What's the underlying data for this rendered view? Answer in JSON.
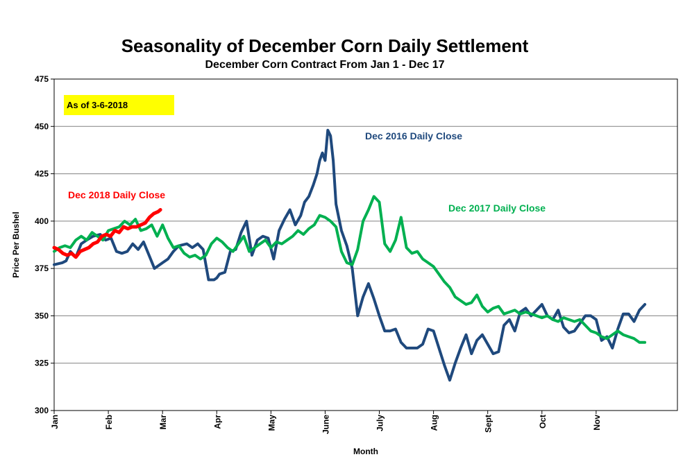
{
  "chart_data": {
    "type": "line",
    "title": "Seasonality of December Corn Daily Settlement",
    "subtitle": "December Corn Contract From Jan 1 - Dec 17",
    "xlabel": "Month",
    "ylabel": "Price Per Bushel",
    "ylim": [
      300,
      475
    ],
    "yticks": [
      300,
      325,
      350,
      375,
      400,
      425,
      450,
      475
    ],
    "xlim": [
      0,
      11.5
    ],
    "months": [
      "Jan",
      "Feb",
      "Mar",
      "Apr",
      "May",
      "June",
      "July",
      "Aug",
      "Sept",
      "Oct",
      "Nov"
    ],
    "grid": true,
    "note": "As of 3-6-2018",
    "colors": {
      "dec2016": "#1F497D",
      "dec2017": "#00B050",
      "dec2018": "#FF0000",
      "note_bg": "#FFFF00"
    },
    "series": [
      {
        "key": "dec2016",
        "name": "Dec 2016 Daily Close",
        "x": [
          0,
          0.15,
          0.22,
          0.3,
          0.4,
          0.5,
          0.6,
          0.72,
          0.85,
          0.95,
          1.05,
          1.15,
          1.25,
          1.35,
          1.45,
          1.55,
          1.65,
          1.75,
          1.85,
          2.0,
          2.1,
          2.2,
          2.3,
          2.45,
          2.55,
          2.65,
          2.75,
          2.85,
          2.95,
          3.0,
          3.05,
          3.15,
          3.25,
          3.35,
          3.45,
          3.55,
          3.65,
          3.75,
          3.85,
          3.95,
          4.05,
          4.15,
          4.25,
          4.35,
          4.45,
          4.55,
          4.62,
          4.7,
          4.78,
          4.85,
          4.9,
          4.95,
          5.0,
          5.05,
          5.1,
          5.15,
          5.2,
          5.3,
          5.4,
          5.5,
          5.6,
          5.7,
          5.8,
          5.9,
          6.0,
          6.1,
          6.2,
          6.3,
          6.4,
          6.5,
          6.6,
          6.7,
          6.8,
          6.9,
          7.0,
          7.1,
          7.2,
          7.3,
          7.4,
          7.5,
          7.6,
          7.7,
          7.8,
          7.9,
          8.0,
          8.1,
          8.2,
          8.3,
          8.4,
          8.5,
          8.6,
          8.7,
          8.8,
          8.9,
          9.0,
          9.1,
          9.2,
          9.3,
          9.4,
          9.5,
          9.6,
          9.7,
          9.8,
          9.9,
          10.0,
          10.1,
          10.2,
          10.3,
          10.4,
          10.5,
          10.6,
          10.7,
          10.8,
          10.9
        ],
        "values": [
          377,
          378,
          379,
          384,
          381,
          388,
          390,
          392,
          393,
          390,
          391,
          384,
          383,
          384,
          388,
          385,
          389,
          382,
          375,
          378,
          380,
          384,
          387,
          388,
          386,
          388,
          385,
          369,
          369,
          370,
          372,
          373,
          384,
          385,
          394,
          400,
          382,
          390,
          392,
          391,
          380,
          395,
          401,
          406,
          398,
          403,
          410,
          413,
          419,
          425,
          432,
          436,
          432,
          448,
          445,
          432,
          409,
          395,
          387,
          375,
          350,
          360,
          367,
          359,
          350,
          342,
          342,
          343,
          336,
          333,
          333,
          333,
          335,
          343,
          342,
          333,
          324,
          316,
          325,
          333,
          340,
          330,
          337,
          340,
          335,
          330,
          331,
          345,
          348,
          342,
          352,
          354,
          350,
          353,
          356,
          350,
          348,
          353,
          344,
          341,
          342,
          346,
          350,
          350,
          348,
          337,
          339,
          333,
          343,
          351,
          351,
          347,
          353,
          356
        ]
      },
      {
        "key": "dec2017",
        "name": "Dec 2017 Daily Close",
        "x": [
          0,
          0.1,
          0.2,
          0.3,
          0.4,
          0.5,
          0.6,
          0.7,
          0.8,
          0.9,
          1.0,
          1.1,
          1.2,
          1.3,
          1.4,
          1.5,
          1.6,
          1.7,
          1.8,
          1.9,
          2.0,
          2.1,
          2.2,
          2.3,
          2.4,
          2.5,
          2.6,
          2.7,
          2.8,
          2.9,
          3.0,
          3.1,
          3.2,
          3.3,
          3.4,
          3.5,
          3.6,
          3.7,
          3.8,
          3.9,
          4.0,
          4.1,
          4.2,
          4.3,
          4.4,
          4.5,
          4.6,
          4.7,
          4.8,
          4.9,
          5.0,
          5.1,
          5.2,
          5.3,
          5.4,
          5.5,
          5.6,
          5.7,
          5.8,
          5.9,
          6.0,
          6.1,
          6.2,
          6.3,
          6.4,
          6.5,
          6.6,
          6.7,
          6.8,
          6.9,
          7.0,
          7.1,
          7.2,
          7.3,
          7.4,
          7.5,
          7.6,
          7.7,
          7.8,
          7.9,
          8.0,
          8.1,
          8.2,
          8.3,
          8.4,
          8.5,
          8.6,
          8.7,
          8.8,
          8.9,
          9.0,
          9.1,
          9.2,
          9.3,
          9.4,
          9.5,
          9.6,
          9.7,
          9.8,
          9.9,
          10.0,
          10.1,
          10.2,
          10.3,
          10.4,
          10.5,
          10.6,
          10.7,
          10.8,
          10.9
        ],
        "values": [
          384,
          386,
          387,
          386,
          390,
          392,
          390,
          394,
          392,
          390,
          395,
          396,
          397,
          400,
          398,
          401,
          395,
          396,
          398,
          392,
          398,
          391,
          386,
          387,
          383,
          381,
          382,
          380,
          382,
          388,
          391,
          389,
          386,
          384,
          388,
          392,
          384,
          386,
          388,
          390,
          386,
          389,
          388,
          390,
          392,
          395,
          393,
          396,
          398,
          403,
          402,
          400,
          397,
          384,
          378,
          377,
          385,
          400,
          406,
          413,
          410,
          388,
          384,
          390,
          402,
          386,
          383,
          384,
          380,
          378,
          376,
          372,
          368,
          365,
          360,
          358,
          356,
          357,
          361,
          355,
          352,
          354,
          355,
          351,
          352,
          353,
          351,
          352,
          351,
          350,
          349,
          350,
          348,
          347,
          349,
          348,
          347,
          348,
          345,
          342,
          341,
          339,
          338,
          340,
          342,
          340,
          339,
          338,
          336,
          336
        ]
      },
      {
        "key": "dec2018",
        "name": "Dec 2018 Daily Close",
        "x": [
          0,
          0.08,
          0.16,
          0.24,
          0.32,
          0.4,
          0.48,
          0.56,
          0.64,
          0.72,
          0.8,
          0.88,
          0.96,
          1.04,
          1.12,
          1.2,
          1.28,
          1.36,
          1.44,
          1.52,
          1.6,
          1.68,
          1.76,
          1.84,
          1.92,
          1.96
        ],
        "values": [
          386,
          385,
          383,
          382,
          383,
          381,
          384,
          385,
          386,
          388,
          389,
          392,
          393,
          392,
          395,
          394,
          397,
          396,
          397,
          397,
          398,
          399,
          402,
          404,
          405,
          406
        ]
      }
    ]
  }
}
